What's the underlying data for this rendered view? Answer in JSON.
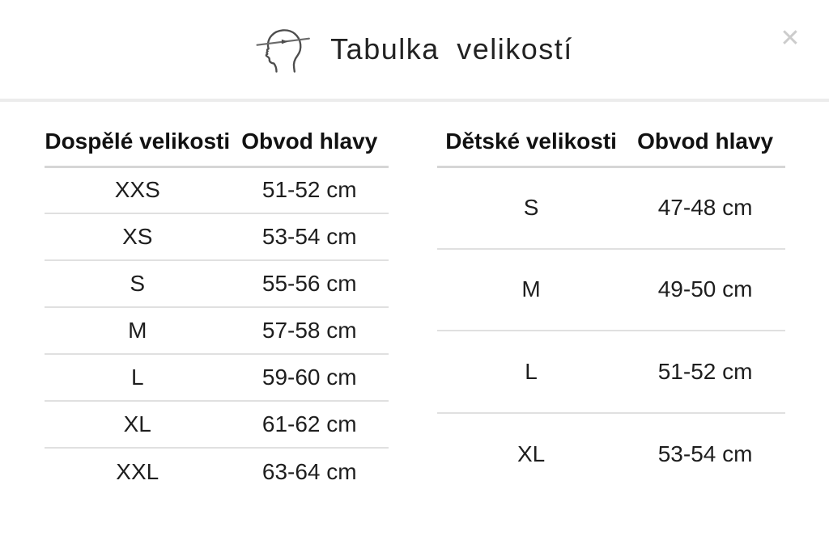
{
  "modal": {
    "title": "Tabulka velikostí",
    "close_glyph": "✕"
  },
  "adult_table": {
    "columns": [
      "Dospělé velikosti",
      "Obvod hlavy"
    ],
    "rows": [
      [
        "XXS",
        "51-52 cm"
      ],
      [
        "XS",
        "53-54 cm"
      ],
      [
        "S",
        "55-56 cm"
      ],
      [
        "M",
        "57-58 cm"
      ],
      [
        "L",
        "59-60 cm"
      ],
      [
        "XL",
        "61-62 cm"
      ],
      [
        "XXL",
        "63-64 cm"
      ]
    ]
  },
  "children_table": {
    "columns": [
      "Dětské velikosti",
      "Obvod hlavy"
    ],
    "rows": [
      [
        "S",
        "47-48 cm"
      ],
      [
        "M",
        "49-50 cm"
      ],
      [
        "L",
        "51-52 cm"
      ],
      [
        "XL",
        "53-54 cm"
      ]
    ]
  },
  "icons": {
    "head_icon": "head-profile-with-measuring-tape"
  },
  "colors": {
    "text": "#1e1e1e",
    "title": "#222222",
    "header_divider": "#ececec",
    "table_header_rule": "#d6d6d6",
    "table_row_rule": "#e0e0e0",
    "close_icon": "#cccccc",
    "icon_stroke": "#4d4d4d"
  }
}
